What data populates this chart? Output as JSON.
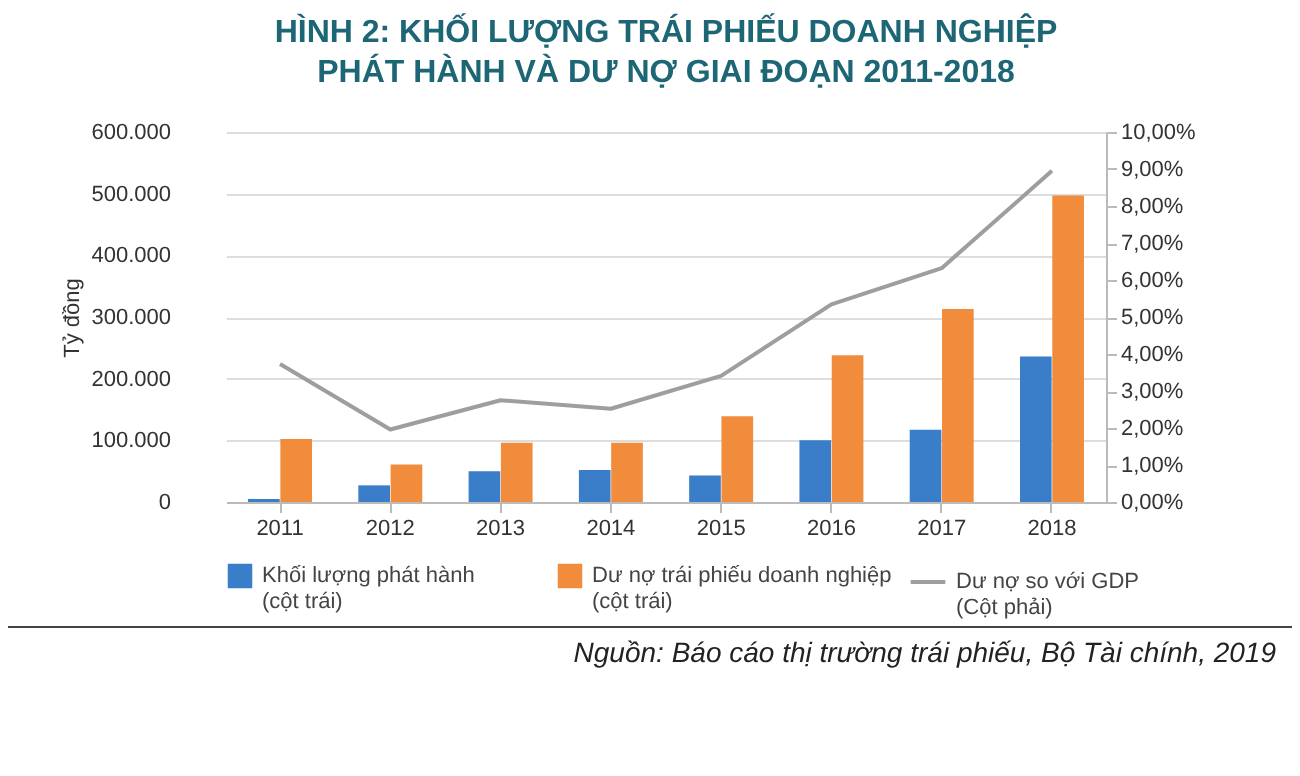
{
  "chart_data": {
    "type": "bar",
    "title": "HÌNH 2: KHỐI LƯỢNG TRÁI PHIẾU DOANH NGHIỆP PHÁT HÀNH VÀ DƯ NỢ GIAI ĐOẠN 2011-2018",
    "ylabel": "Tỷ đồng",
    "categories": [
      "2011",
      "2012",
      "2013",
      "2014",
      "2015",
      "2016",
      "2017",
      "2018"
    ],
    "series": [
      {
        "name": "Khối lượng phát hành (cột trái)",
        "color": "#3a7dc9",
        "values": [
          5000,
          27000,
          50000,
          52000,
          43000,
          100000,
          117000,
          236000
        ]
      },
      {
        "name": "Dư nợ trái phiếu doanh nghiệp (cột trái)",
        "color": "#f08c3c",
        "values": [
          102000,
          61000,
          96000,
          96000,
          139000,
          238000,
          313000,
          497000
        ]
      },
      {
        "name": "Dư nợ so với GDP (Cột phải)",
        "type": "line",
        "axis": "y2",
        "color": "#9e9e9e",
        "values": [
          3.73,
          1.96,
          2.75,
          2.52,
          3.41,
          5.34,
          6.32,
          8.95
        ]
      }
    ],
    "ylim": [
      0,
      600000
    ],
    "yticks": [
      {
        "value": 0,
        "label": "0"
      },
      {
        "value": 100000,
        "label": "100.000"
      },
      {
        "value": 200000,
        "label": "200.000"
      },
      {
        "value": 300000,
        "label": "300.000"
      },
      {
        "value": 400000,
        "label": "400.000"
      },
      {
        "value": 500000,
        "label": "500.000"
      },
      {
        "value": 600000,
        "label": "600.000"
      }
    ],
    "y2lim": [
      0,
      10
    ],
    "y2ticks": [
      {
        "value": 0,
        "label": "0,00%"
      },
      {
        "value": 1,
        "label": "1,00%"
      },
      {
        "value": 2,
        "label": "2,00%"
      },
      {
        "value": 3,
        "label": "3,00%"
      },
      {
        "value": 4,
        "label": "4,00%"
      },
      {
        "value": 5,
        "label": "5,00%"
      },
      {
        "value": 6,
        "label": "6,00%"
      },
      {
        "value": 7,
        "label": "7,00%"
      },
      {
        "value": 8,
        "label": "8,00%"
      },
      {
        "value": 9,
        "label": "9,00%"
      },
      {
        "value": 10,
        "label": "10,00%"
      }
    ],
    "grid": "y",
    "legend": "bottom",
    "annotations": [
      "Nguồn: Báo cáo thị trường trái phiếu, Bộ Tài chính, 2019"
    ]
  }
}
